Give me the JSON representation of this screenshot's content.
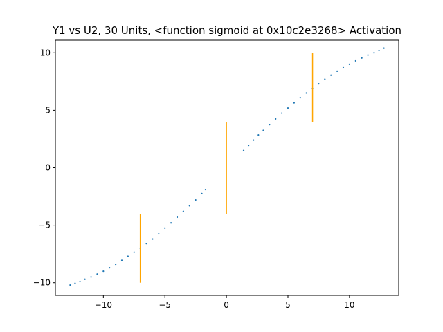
{
  "chart_data": {
    "type": "scatter",
    "title": "Y1 vs U2, 30 Units, <function sigmoid at 0x10c2e3268> Activation",
    "xlabel": "",
    "ylabel": "",
    "xlim": [
      -13.9,
      14.0
    ],
    "ylim": [
      -11.1,
      11.1
    ],
    "x_ticks": [
      {
        "value": -10,
        "label": "−10"
      },
      {
        "value": -5,
        "label": "−5"
      },
      {
        "value": 0,
        "label": "0"
      },
      {
        "value": 5,
        "label": "5"
      },
      {
        "value": 10,
        "label": "10"
      }
    ],
    "y_ticks": [
      {
        "value": -10,
        "label": "−10"
      },
      {
        "value": -5,
        "label": "−5"
      },
      {
        "value": 0,
        "label": "0"
      },
      {
        "value": 5,
        "label": "5"
      },
      {
        "value": 10,
        "label": "10"
      }
    ],
    "grid": false,
    "colors": {
      "points": "#1f77b4",
      "lines": "#ffa500"
    },
    "series": [
      {
        "kind": "scatter",
        "segments": [
          {
            "x": [
              -12.7,
              -12.3,
              -11.9,
              -11.5,
              -11.0,
              -10.5,
              -10.0,
              -9.5,
              -9.0,
              -8.5,
              -8.0,
              -7.5,
              -7.0,
              -6.5,
              -6.0,
              -5.5,
              -5.0,
              -4.5,
              -4.0,
              -3.5,
              -3.0,
              -2.5,
              -2.0,
              -1.7
            ],
            "y": [
              -10.2,
              -10.05,
              -9.9,
              -9.7,
              -9.5,
              -9.25,
              -9.0,
              -8.7,
              -8.4,
              -8.05,
              -7.7,
              -7.35,
              -7.0,
              -6.6,
              -6.2,
              -5.75,
              -5.25,
              -4.8,
              -4.3,
              -3.8,
              -3.3,
              -2.8,
              -2.25,
              -1.9
            ]
          },
          {
            "x": [
              1.4,
              1.8,
              2.2,
              2.6,
              3.0,
              3.5,
              4.0,
              4.5,
              5.0,
              5.5,
              6.0,
              6.5,
              7.0,
              7.5,
              8.0,
              8.5,
              9.0,
              9.5,
              10.0,
              10.5,
              11.0,
              11.5,
              12.0,
              12.4,
              12.8
            ],
            "y": [
              1.5,
              1.95,
              2.4,
              2.85,
              3.25,
              3.75,
              4.25,
              4.75,
              5.2,
              5.65,
              6.1,
              6.5,
              6.9,
              7.3,
              7.7,
              8.05,
              8.4,
              8.7,
              9.0,
              9.3,
              9.55,
              9.8,
              10.0,
              10.2,
              10.4
            ]
          }
        ]
      },
      {
        "kind": "vlines",
        "lines": [
          {
            "x": -7.0,
            "y0": -10.0,
            "y1": -4.0
          },
          {
            "x": 0.0,
            "y0": -4.0,
            "y1": 4.0
          },
          {
            "x": 7.0,
            "y0": 4.0,
            "y1": 10.0
          }
        ]
      }
    ]
  }
}
